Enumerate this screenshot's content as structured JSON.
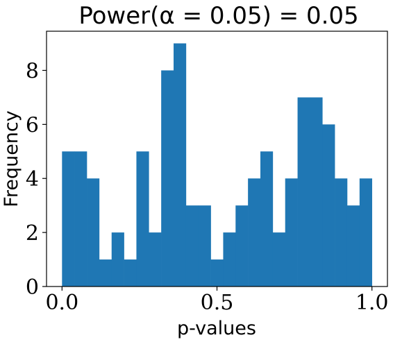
{
  "chart_data": {
    "type": "bar",
    "title": "Power(α = 0.05) = 0.05",
    "xlabel": "p-values",
    "ylabel": "Frequency",
    "bin_edges": [
      0.0,
      0.04,
      0.08,
      0.12,
      0.16,
      0.2,
      0.24,
      0.28,
      0.32,
      0.36,
      0.4,
      0.44,
      0.48,
      0.52,
      0.56,
      0.6,
      0.64,
      0.68,
      0.72,
      0.76,
      0.8,
      0.84,
      0.88,
      0.92,
      0.96,
      1.0
    ],
    "values": [
      5,
      5,
      4,
      1,
      2,
      1,
      5,
      2,
      8,
      9,
      3,
      3,
      1,
      2,
      3,
      4,
      5,
      2,
      4,
      7,
      7,
      6,
      4,
      3,
      4
    ],
    "bar_color": "#1f77b4",
    "xlim": [
      -0.05,
      1.05
    ],
    "ylim": [
      0,
      9.45
    ],
    "x_ticks": [
      {
        "value": 0.0,
        "label": "0.0"
      },
      {
        "value": 0.5,
        "label": "0.5"
      },
      {
        "value": 1.0,
        "label": "1.0"
      }
    ],
    "y_ticks": [
      {
        "value": 0,
        "label": "0"
      },
      {
        "value": 2,
        "label": "2"
      },
      {
        "value": 4,
        "label": "4"
      },
      {
        "value": 6,
        "label": "6"
      },
      {
        "value": 8,
        "label": "8"
      }
    ],
    "grid": false,
    "legend": false
  }
}
